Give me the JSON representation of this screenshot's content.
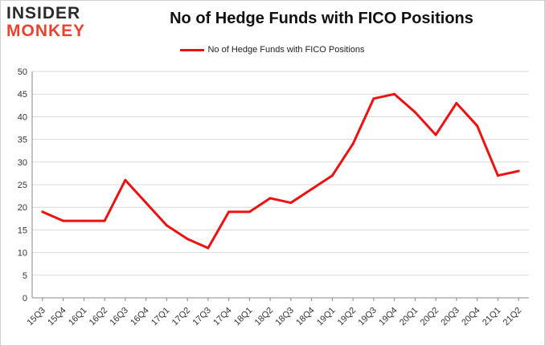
{
  "logo": {
    "line1": "INSIDER",
    "line2": "MONKEY"
  },
  "colors": {
    "series": "#ee1111",
    "grid": "#d9d9d9",
    "axis": "#888888",
    "logo_accent": "#e8432e"
  },
  "chart_data": {
    "type": "line",
    "title": "No of Hedge Funds with FICO Positions",
    "xlabel": "",
    "ylabel": "",
    "ylim": [
      0,
      50
    ],
    "yticks": [
      0,
      5,
      10,
      15,
      20,
      25,
      30,
      35,
      40,
      45,
      50
    ],
    "grid": true,
    "legend_position": "top-center",
    "categories": [
      "15Q3",
      "15Q4",
      "16Q1",
      "16Q2",
      "16Q3",
      "16Q4",
      "17Q1",
      "17Q2",
      "17Q3",
      "17Q4",
      "18Q1",
      "18Q2",
      "18Q3",
      "18Q4",
      "19Q1",
      "19Q2",
      "19Q3",
      "19Q4",
      "20Q1",
      "20Q2",
      "20Q3",
      "20Q4",
      "21Q1",
      "21Q2"
    ],
    "series": [
      {
        "name": "No of Hedge Funds with FICO Positions",
        "values": [
          19,
          17,
          17,
          17,
          26,
          21,
          16,
          13,
          11,
          19,
          19,
          22,
          21,
          24,
          27,
          34,
          44,
          45,
          41,
          36,
          43,
          38,
          27,
          28
        ]
      }
    ]
  }
}
